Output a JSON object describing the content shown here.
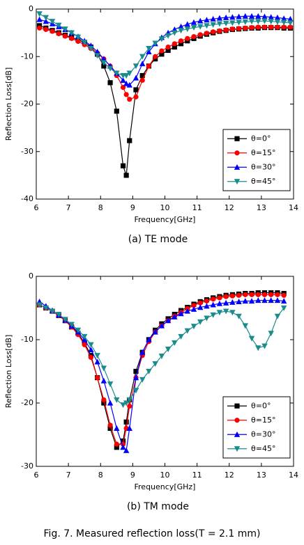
{
  "figure_caption": "Fig. 7. Measured reflection loss(T = 2.1 mm)",
  "chart_data": [
    {
      "type": "line",
      "caption": "(a) TE mode",
      "x_label": "Frequency[GHz]",
      "y_label": "Reflection Loss[dB]",
      "xlim": [
        6,
        14
      ],
      "xticks": [
        6,
        7,
        8,
        9,
        10,
        11,
        12,
        13,
        14
      ],
      "ylim": [
        -40,
        0
      ],
      "yticks": [
        -40,
        -30,
        -20,
        -10,
        0
      ],
      "legend": "lower right",
      "x": [
        6.1,
        6.3,
        6.5,
        6.7,
        6.9,
        7.1,
        7.3,
        7.5,
        7.7,
        7.9,
        8.1,
        8.3,
        8.5,
        8.7,
        8.8,
        8.9,
        9.1,
        9.3,
        9.5,
        9.7,
        9.9,
        10.1,
        10.3,
        10.5,
        10.7,
        10.9,
        11.1,
        11.3,
        11.5,
        11.7,
        11.9,
        12.1,
        12.3,
        12.5,
        12.7,
        12.9,
        13.1,
        13.3,
        13.5,
        13.7,
        13.9
      ],
      "series": [
        {
          "name": "θ=0°",
          "color": "#000000",
          "marker": "square",
          "values": [
            -3.5,
            -4,
            -4.5,
            -5,
            -5.5,
            -6,
            -6.5,
            -7,
            -8,
            -9.5,
            -12,
            -15.5,
            -21.5,
            -33,
            -35,
            -27.7,
            -17,
            -14,
            -12,
            -10.5,
            -9.5,
            -8.7,
            -8,
            -7.3,
            -6.7,
            -6.2,
            -5.7,
            -5.3,
            -5,
            -4.7,
            -4.5,
            -4.3,
            -4.2,
            -4.1,
            -4,
            -4,
            -3.9,
            -3.9,
            -3.9,
            -4,
            -4
          ]
        },
        {
          "name": "θ=15°",
          "color": "#ff0000",
          "marker": "circle",
          "values": [
            -4,
            -4.3,
            -4.7,
            -5.2,
            -5.7,
            -6.2,
            -6.8,
            -7.5,
            -8.3,
            -9.3,
            -10.5,
            -12,
            -14,
            -16.5,
            -18,
            -19,
            -18.5,
            -15,
            -12,
            -10,
            -8.8,
            -8,
            -7.3,
            -6.7,
            -6.2,
            -5.8,
            -5.4,
            -5.1,
            -4.8,
            -4.6,
            -4.4,
            -4.2,
            -4.1,
            -4,
            -3.9,
            -3.8,
            -3.8,
            -3.8,
            -3.8,
            -3.8,
            -3.8
          ]
        },
        {
          "name": "θ=30°",
          "color": "#0000ff",
          "marker": "triangle-up",
          "values": [
            -2.2,
            -2.6,
            -3.1,
            -3.7,
            -4.3,
            -5,
            -5.8,
            -6.7,
            -7.7,
            -9,
            -10.5,
            -12,
            -13.5,
            -15,
            -15.7,
            -16,
            -14.5,
            -11.5,
            -9,
            -7.3,
            -6,
            -5,
            -4.3,
            -3.7,
            -3.2,
            -2.8,
            -2.5,
            -2.3,
            -2.1,
            -1.9,
            -1.8,
            -1.7,
            -1.6,
            -1.5,
            -1.5,
            -1.5,
            -1.6,
            -1.7,
            -1.8,
            -2,
            -2.1
          ]
        },
        {
          "name": "θ=45°",
          "color": "#1a8c8c",
          "marker": "triangle-down",
          "values": [
            -1,
            -1.8,
            -2.6,
            -3.4,
            -4.2,
            -5,
            -5.9,
            -7,
            -8.3,
            -9.8,
            -11.3,
            -12.5,
            -13.5,
            -14,
            -14,
            -13.5,
            -12,
            -10,
            -8.3,
            -7.2,
            -6.3,
            -5.6,
            -5,
            -4.5,
            -4.2,
            -3.9,
            -3.7,
            -3.5,
            -3.3,
            -3.1,
            -3,
            -2.9,
            -2.8,
            -2.7,
            -2.6,
            -2.6,
            -2.5,
            -2.6,
            -2.7,
            -2.8,
            -2.9
          ]
        }
      ]
    },
    {
      "type": "line",
      "caption": "(b) TM mode",
      "x_label": "Frequency[GHz]",
      "y_label": "Reflection Loss[dB]",
      "xlim": [
        6,
        14
      ],
      "xticks": [
        6,
        7,
        8,
        9,
        10,
        11,
        12,
        13,
        14
      ],
      "ylim": [
        -30,
        0
      ],
      "yticks": [
        -30,
        -20,
        -10,
        0
      ],
      "legend": "lower right",
      "x": [
        6.1,
        6.3,
        6.5,
        6.7,
        6.9,
        7.1,
        7.3,
        7.5,
        7.7,
        7.9,
        8.1,
        8.3,
        8.5,
        8.7,
        8.8,
        8.9,
        9.1,
        9.3,
        9.5,
        9.7,
        9.9,
        10.1,
        10.3,
        10.5,
        10.7,
        10.9,
        11.1,
        11.3,
        11.5,
        11.7,
        11.9,
        12.1,
        12.3,
        12.5,
        12.7,
        12.9,
        13.1,
        13.3,
        13.5,
        13.7
      ],
      "series": [
        {
          "name": "θ=0°",
          "color": "#000000",
          "marker": "square",
          "values": [
            -4.5,
            -5,
            -5.5,
            -6.2,
            -7,
            -8,
            -9,
            -10.5,
            -12.5,
            -16,
            -20,
            -24,
            -27,
            -26,
            -23,
            -19.5,
            -15,
            -12,
            -10,
            -8.5,
            -7.5,
            -6.7,
            -6,
            -5.4,
            -4.9,
            -4.4,
            -4,
            -3.7,
            -3.4,
            -3.2,
            -3,
            -2.9,
            -2.8,
            -2.7,
            -2.7,
            -2.6,
            -2.6,
            -2.6,
            -2.6,
            -2.7
          ]
        },
        {
          "name": "θ=15°",
          "color": "#ff0000",
          "marker": "circle",
          "values": [
            -4.5,
            -5,
            -5.5,
            -6.2,
            -7,
            -8,
            -9.2,
            -10.8,
            -12.8,
            -16,
            -19.5,
            -23.5,
            -26.5,
            -26.5,
            -24,
            -20.5,
            -16,
            -12.5,
            -10.3,
            -8.8,
            -7.8,
            -7,
            -6.3,
            -5.7,
            -5.1,
            -4.6,
            -4.2,
            -3.9,
            -3.6,
            -3.4,
            -3.2,
            -3.1,
            -3,
            -2.9,
            -2.9,
            -2.9,
            -2.9,
            -2.9,
            -2.9,
            -3
          ]
        },
        {
          "name": "θ=30°",
          "color": "#0000ff",
          "marker": "triangle-up",
          "values": [
            -4,
            -4.7,
            -5.4,
            -6.1,
            -6.9,
            -7.8,
            -8.8,
            -10,
            -11.6,
            -13.5,
            -16.5,
            -20,
            -24,
            -27,
            -27.5,
            -24,
            -16,
            -12,
            -10,
            -8.8,
            -7.8,
            -7,
            -6.4,
            -5.9,
            -5.5,
            -5.2,
            -4.9,
            -4.7,
            -4.5,
            -4.3,
            -4.2,
            -4.1,
            -4,
            -3.9,
            -3.9,
            -3.8,
            -3.8,
            -3.8,
            -3.8,
            -3.9
          ]
        },
        {
          "name": "θ=45°",
          "color": "#1a8c8c",
          "marker": "triangle-down",
          "values": [
            -4.5,
            -5,
            -5.5,
            -6,
            -6.8,
            -7.6,
            -8.5,
            -9.5,
            -10.8,
            -12.5,
            -14.5,
            -17,
            -19.5,
            -20.3,
            -20,
            -19.5,
            -18,
            -16.3,
            -15,
            -13.8,
            -12.6,
            -11.5,
            -10.5,
            -9.5,
            -8.6,
            -7.9,
            -7.2,
            -6.6,
            -6.1,
            -5.7,
            -5.5,
            -5.7,
            -6.3,
            -7.8,
            -9.8,
            -11.3,
            -11,
            -9,
            -6.3,
            -5
          ]
        }
      ]
    }
  ]
}
